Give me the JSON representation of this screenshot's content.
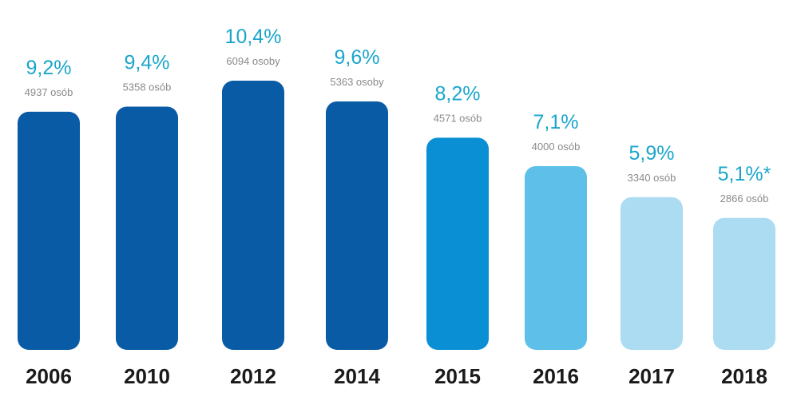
{
  "chart_data": {
    "type": "bar",
    "categories": [
      "2006",
      "2010",
      "2012",
      "2014",
      "2015",
      "2016",
      "2017",
      "2018"
    ],
    "values": [
      9.2,
      9.4,
      10.4,
      9.6,
      8.2,
      7.1,
      5.9,
      5.1
    ],
    "value_labels": [
      "9,2%",
      "9,4%",
      "10,4%",
      "9,6%",
      "8,2%",
      "7,1%",
      "5,9%",
      "5,1%*"
    ],
    "count_labels": [
      "4937 osób",
      "5358 osób",
      "6094 osoby",
      "5363 osoby",
      "4571 osób",
      "4000 osób",
      "3340 osób",
      "2866 osób"
    ],
    "bar_colors": [
      "#0a5ba6",
      "#0a5ba6",
      "#0a5ba6",
      "#0a5ba6",
      "#0b8fd4",
      "#5ec0e8",
      "#acdcf1",
      "#acdcf1"
    ],
    "ylim": [
      0,
      11
    ],
    "title": "",
    "xlabel": "",
    "ylabel": ""
  }
}
